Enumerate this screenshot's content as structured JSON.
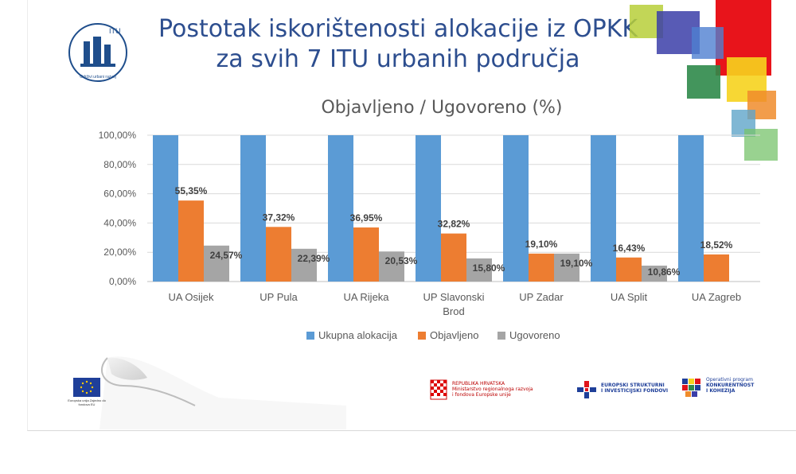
{
  "slide": {
    "title_line1": "Postotak iskorištenosti alokacije iz OPKK",
    "title_line2": "za svih 7 ITU urbanih područja",
    "logo_text_top": "ITU",
    "logo_text_bottom": "Održivi urbani razvoj"
  },
  "colors": {
    "ukupna": "#5b9bd5",
    "objavljeno": "#ed7d31",
    "ugovoreno": "#a5a5a5",
    "title": "#2d4e8f"
  },
  "chart_data": {
    "type": "bar",
    "title": "Objavljeno / Ugovoreno (%)",
    "categories": [
      "UA Osijek",
      "UP Pula",
      "UA Rijeka",
      "UP Slavonski Brod",
      "UP Zadar",
      "UA Split",
      "UA Zagreb"
    ],
    "category_lines": [
      [
        "UA Osijek"
      ],
      [
        "UP Pula"
      ],
      [
        "UA Rijeka"
      ],
      [
        "UP Slavonski",
        "Brod"
      ],
      [
        "UP Zadar"
      ],
      [
        "UA Split"
      ],
      [
        "UA Zagreb"
      ]
    ],
    "series": [
      {
        "name": "Ukupna alokacija",
        "values": [
          100,
          100,
          100,
          100,
          100,
          100,
          100
        ],
        "labels": [
          null,
          null,
          null,
          null,
          null,
          null,
          null
        ]
      },
      {
        "name": "Objavljeno",
        "values": [
          55.35,
          37.32,
          36.95,
          32.82,
          19.1,
          16.43,
          18.52
        ],
        "labels": [
          "55,35%",
          "37,32%",
          "36,95%",
          "32,82%",
          "19,10%",
          "16,43%",
          "18,52%"
        ]
      },
      {
        "name": "Ugovoreno",
        "values": [
          24.57,
          22.39,
          20.53,
          15.8,
          19.1,
          10.86,
          0
        ],
        "labels": [
          "24,57%",
          "22,39%",
          "20,53%",
          "15,80%",
          "19,10%",
          "10,86%",
          null
        ]
      }
    ],
    "yticks": [
      "0,00%",
      "20,00%",
      "40,00%",
      "60,00%",
      "80,00%",
      "100,00%"
    ],
    "ylim": [
      0,
      100
    ],
    "grid": true,
    "legend": "bottom"
  },
  "footer": {
    "eu_caption": "Europska unija Zajedno do fondova EU",
    "hr_line1": "REPUBLIKA HRVATSKA",
    "hr_line2": "Ministarstvo regionalnoga razvoja",
    "hr_line3": "i fondova Europske unije",
    "esf_line1": "EUROPSKI STRUKTURNI",
    "esf_line2": "I INVESTICIJSKI FONDOVI",
    "opkk_line1": "Operativni program",
    "opkk_line2": "KONKURENTNOST",
    "opkk_line3": "I KOHEZIJA"
  }
}
